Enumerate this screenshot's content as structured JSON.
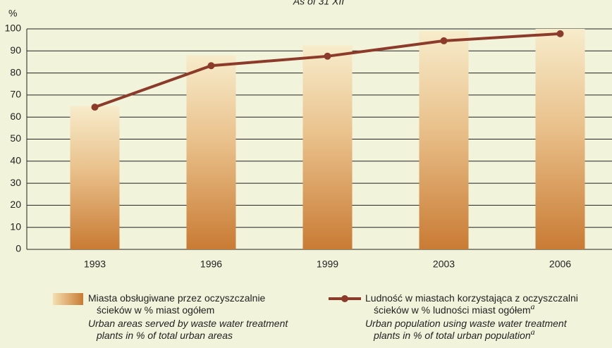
{
  "chart_data": {
    "type": "bar_line",
    "title": "As of 31 XII",
    "y_label": "%",
    "categories": [
      "1993",
      "1996",
      "1999",
      "2003",
      "2006"
    ],
    "series": [
      {
        "name": [
          "Miasta obsługiwane przez oczyszczalnie",
          "ścieków w % miast ogółem"
        ],
        "name_en": [
          "Urban areas served by waste water treatment",
          "plants in % of total urban areas"
        ],
        "type": "bar",
        "color": "#c97b34",
        "values": [
          65,
          88,
          92.5,
          99,
          100
        ]
      },
      {
        "name": [
          "Ludność w miastach korzystająca z oczyszczalni",
          "ścieków w % ludności miast ogółem"
        ],
        "name_en": [
          "Urban population using waste water treatment",
          "plants in % of total urban population"
        ],
        "note": "a",
        "type": "line",
        "color": "#8c3b2b",
        "values": [
          64.5,
          83.3,
          87.6,
          94.6,
          97.8
        ]
      }
    ],
    "ylim": [
      0,
      100
    ],
    "yticks": [
      0,
      10,
      20,
      30,
      40,
      50,
      60,
      70,
      80,
      90,
      100
    ]
  }
}
